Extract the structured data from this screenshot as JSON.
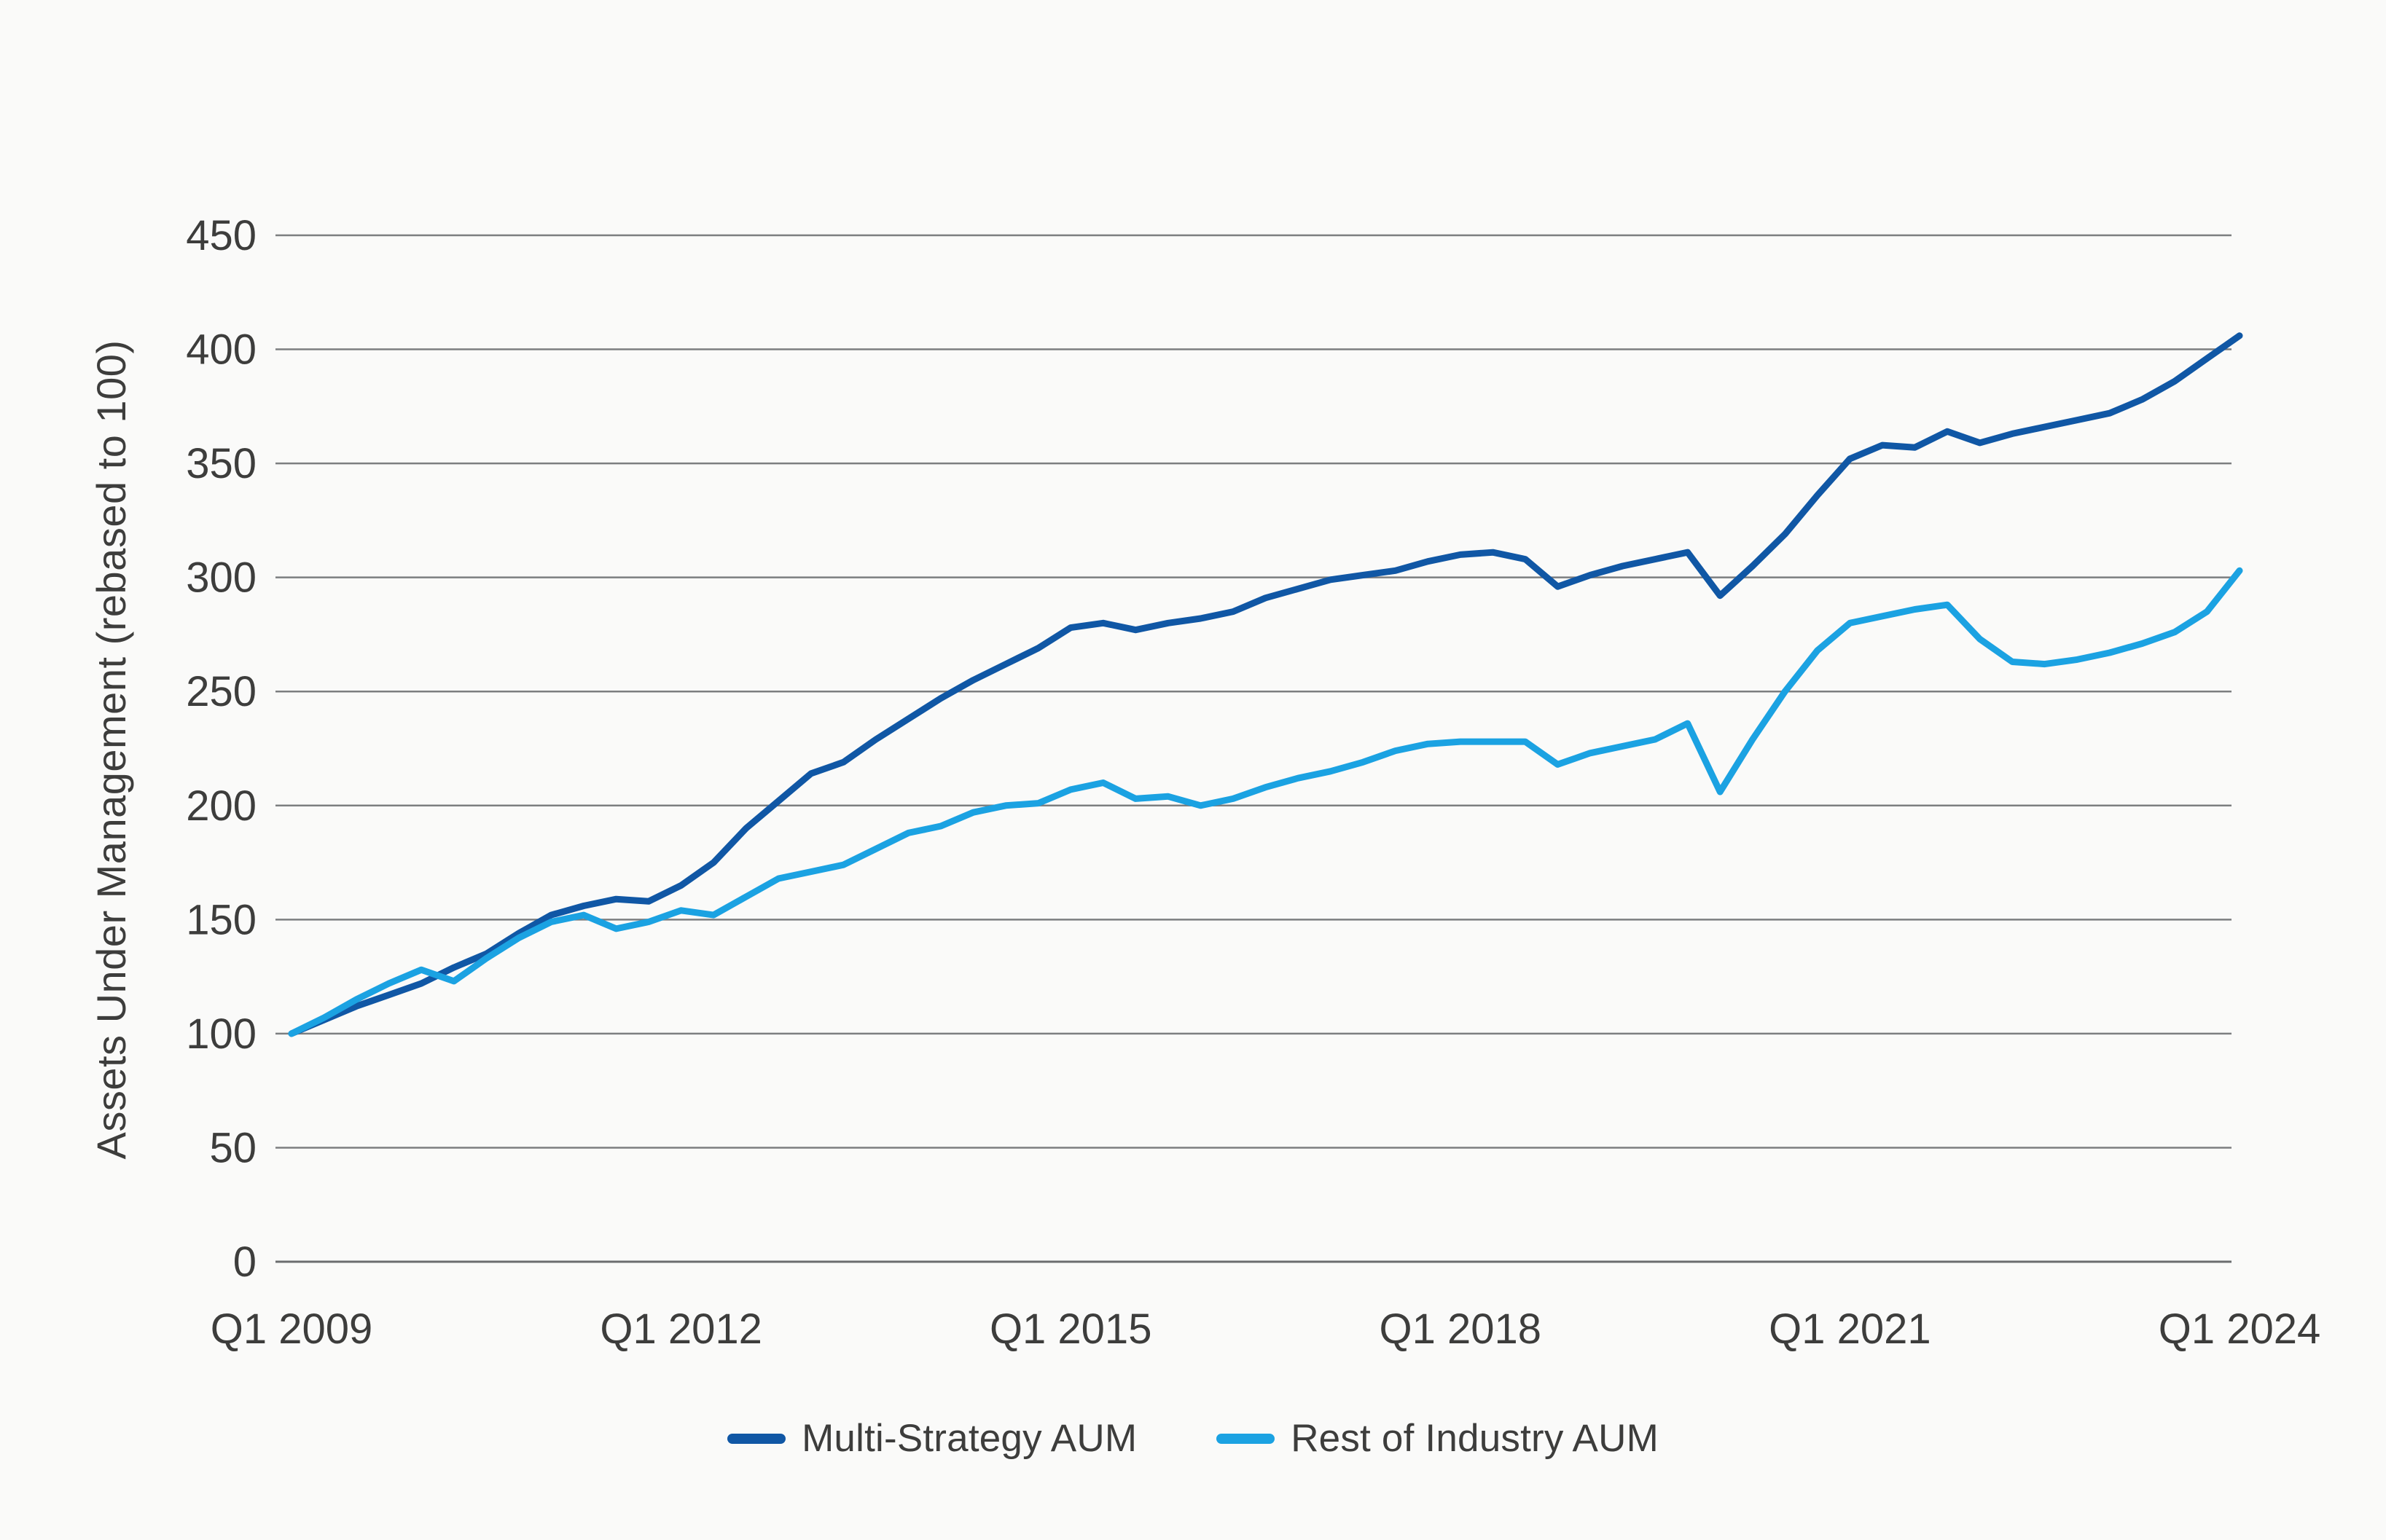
{
  "page": {
    "background_color": "#FAFAF9",
    "text_color": "#3D3D3C",
    "gridline_color": "#7C7E80",
    "baseline_color": "#6B6D6F"
  },
  "y_axis": {
    "title": "Assets Under Management (rebased to 100)",
    "tick_labels": [
      "0",
      "50",
      "100",
      "150",
      "200",
      "250",
      "300",
      "350",
      "400",
      "450"
    ]
  },
  "x_axis": {
    "tick_labels": [
      "Q1 2009",
      "Q1 2012",
      "Q1 2015",
      "Q1 2018",
      "Q1 2021",
      "Q1 2024"
    ]
  },
  "legend": {
    "items": [
      {
        "label": "Multi-Strategy AUM",
        "color": "#1057A5"
      },
      {
        "label": "Rest of Industry AUM",
        "color": "#1BA2E2"
      }
    ]
  },
  "chart_data": {
    "type": "line",
    "title": "",
    "xlabel": "",
    "ylabel": "Assets Under Management (rebased to 100)",
    "ylim": [
      0,
      450
    ],
    "y_tick_step": 50,
    "grid": "horizontal",
    "legend_position": "bottom-center",
    "x_frequency": "quarterly",
    "x_start": "Q1 2009",
    "x_end": "Q1 2024",
    "n_points": 61,
    "x_ticks": [
      {
        "label": "Q1 2009",
        "q": 0
      },
      {
        "label": "Q1 2012",
        "q": 12
      },
      {
        "label": "Q1 2015",
        "q": 24
      },
      {
        "label": "Q1 2018",
        "q": 36
      },
      {
        "label": "Q1 2021",
        "q": 48
      },
      {
        "label": "Q1 2024",
        "q": 60
      }
    ],
    "series": [
      {
        "name": "Multi-Strategy AUM",
        "color": "#1057A5",
        "values": [
          100,
          106,
          112,
          117,
          122,
          129,
          135,
          144,
          152,
          156,
          159,
          158,
          165,
          175,
          190,
          202,
          214,
          219,
          229,
          238,
          247,
          255,
          262,
          269,
          278,
          280,
          277,
          280,
          282,
          285,
          291,
          295,
          299,
          301,
          303,
          307,
          310,
          311,
          308,
          296,
          301,
          305,
          308,
          311,
          292,
          305,
          319,
          336,
          352,
          358,
          357,
          364,
          359,
          363,
          366,
          369,
          372,
          378,
          386,
          396,
          406
        ]
      },
      {
        "name": "Rest of Industry AUM",
        "color": "#1BA2E2",
        "values": [
          100,
          107,
          115,
          122,
          128,
          123,
          133,
          142,
          149,
          152,
          146,
          149,
          154,
          152,
          160,
          168,
          171,
          174,
          181,
          188,
          191,
          197,
          200,
          201,
          207,
          210,
          203,
          204,
          200,
          203,
          208,
          212,
          215,
          219,
          224,
          227,
          228,
          228,
          228,
          218,
          223,
          226,
          229,
          236,
          206,
          229,
          250,
          268,
          280,
          283,
          286,
          288,
          273,
          263,
          262,
          264,
          267,
          271,
          276,
          285,
          303
        ]
      }
    ]
  }
}
